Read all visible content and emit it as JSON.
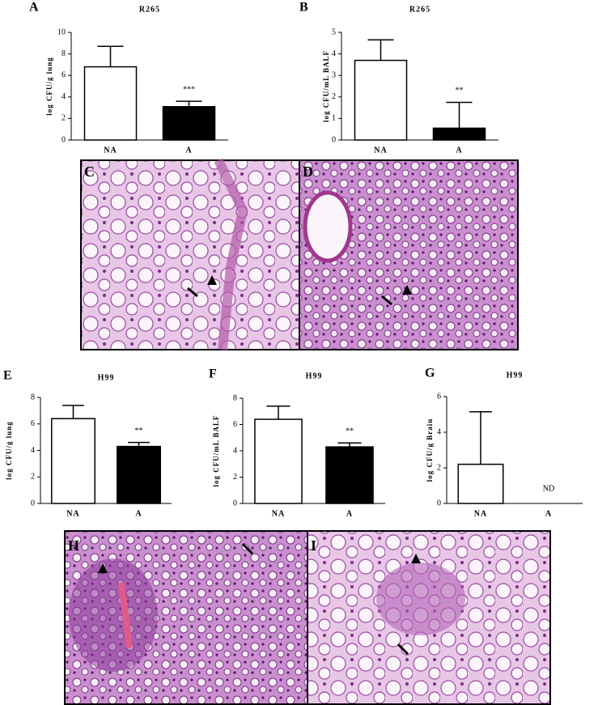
{
  "chart_data": [
    {
      "type": "bar",
      "panel": "A",
      "title": "R265",
      "ylabel": "log CFU/g lung",
      "categories": [
        "NA",
        "A"
      ],
      "values": [
        6.8,
        3.1
      ],
      "errors": [
        1.9,
        0.5
      ],
      "colors": [
        "#ffffff",
        "#000000"
      ],
      "ylim": [
        0,
        10
      ],
      "yticks": [
        0,
        2,
        4,
        6,
        8,
        10
      ],
      "annotations": [
        "***"
      ]
    },
    {
      "type": "bar",
      "panel": "B",
      "title": "R265",
      "ylabel": "log CFU/mL BALF",
      "categories": [
        "NA",
        "A"
      ],
      "values": [
        3.7,
        0.55
      ],
      "errors": [
        0.95,
        1.2
      ],
      "colors": [
        "#ffffff",
        "#000000"
      ],
      "ylim": [
        0,
        5
      ],
      "yticks": [
        0,
        1,
        2,
        3,
        4,
        5
      ],
      "annotations": [
        "**"
      ]
    },
    {
      "type": "bar",
      "panel": "E",
      "title": "H99",
      "ylabel": "log CFU/g lung",
      "categories": [
        "NA",
        "A"
      ],
      "values": [
        6.4,
        4.3
      ],
      "errors": [
        1.0,
        0.3
      ],
      "colors": [
        "#ffffff",
        "#000000"
      ],
      "ylim": [
        0,
        8
      ],
      "yticks": [
        0,
        2,
        4,
        6,
        8
      ],
      "annotations": [
        "**"
      ]
    },
    {
      "type": "bar",
      "panel": "F",
      "title": "H99",
      "ylabel": "log CFU/mL BALF",
      "categories": [
        "NA",
        "A"
      ],
      "values": [
        6.4,
        4.3
      ],
      "errors": [
        1.0,
        0.3
      ],
      "colors": [
        "#ffffff",
        "#000000"
      ],
      "ylim": [
        0,
        8
      ],
      "yticks": [
        0,
        2,
        4,
        6,
        8
      ],
      "annotations": [
        "**"
      ]
    },
    {
      "type": "bar",
      "panel": "G",
      "title": "H99",
      "ylabel": "log CFU/g Brain",
      "categories": [
        "NA",
        "A"
      ],
      "values": [
        2.2,
        null
      ],
      "errors": [
        2.95,
        null
      ],
      "colors": [
        "#ffffff",
        "#000000"
      ],
      "ylim": [
        0,
        6
      ],
      "yticks": [
        0,
        2,
        4,
        6
      ],
      "annotations": [
        "ND"
      ]
    }
  ],
  "images": [
    {
      "label": "C"
    },
    {
      "label": "D"
    },
    {
      "label": "H"
    },
    {
      "label": "I"
    }
  ]
}
